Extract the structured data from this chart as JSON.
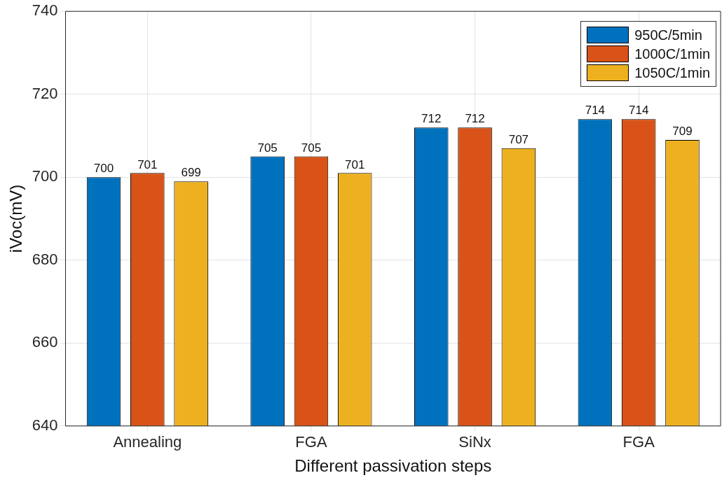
{
  "chart_data": {
    "type": "bar",
    "xlabel": "Different passivation steps",
    "ylabel": "iVoc(mV)",
    "categories": [
      "Annealing",
      "FGA",
      "SiNx",
      "FGA"
    ],
    "series": [
      {
        "name": "950C/5min",
        "color": "#0072bd",
        "values": [
          700,
          705,
          712,
          714
        ]
      },
      {
        "name": "1000C/1min",
        "color": "#d95319",
        "values": [
          701,
          705,
          712,
          714
        ]
      },
      {
        "name": "1050C/1min",
        "color": "#edb120",
        "values": [
          699,
          701,
          707,
          709
        ]
      }
    ],
    "ylim": [
      640,
      740
    ],
    "yticks": [
      640,
      660,
      680,
      700,
      720,
      740
    ],
    "grid": true,
    "legend": "top right",
    "data_labels": true
  }
}
